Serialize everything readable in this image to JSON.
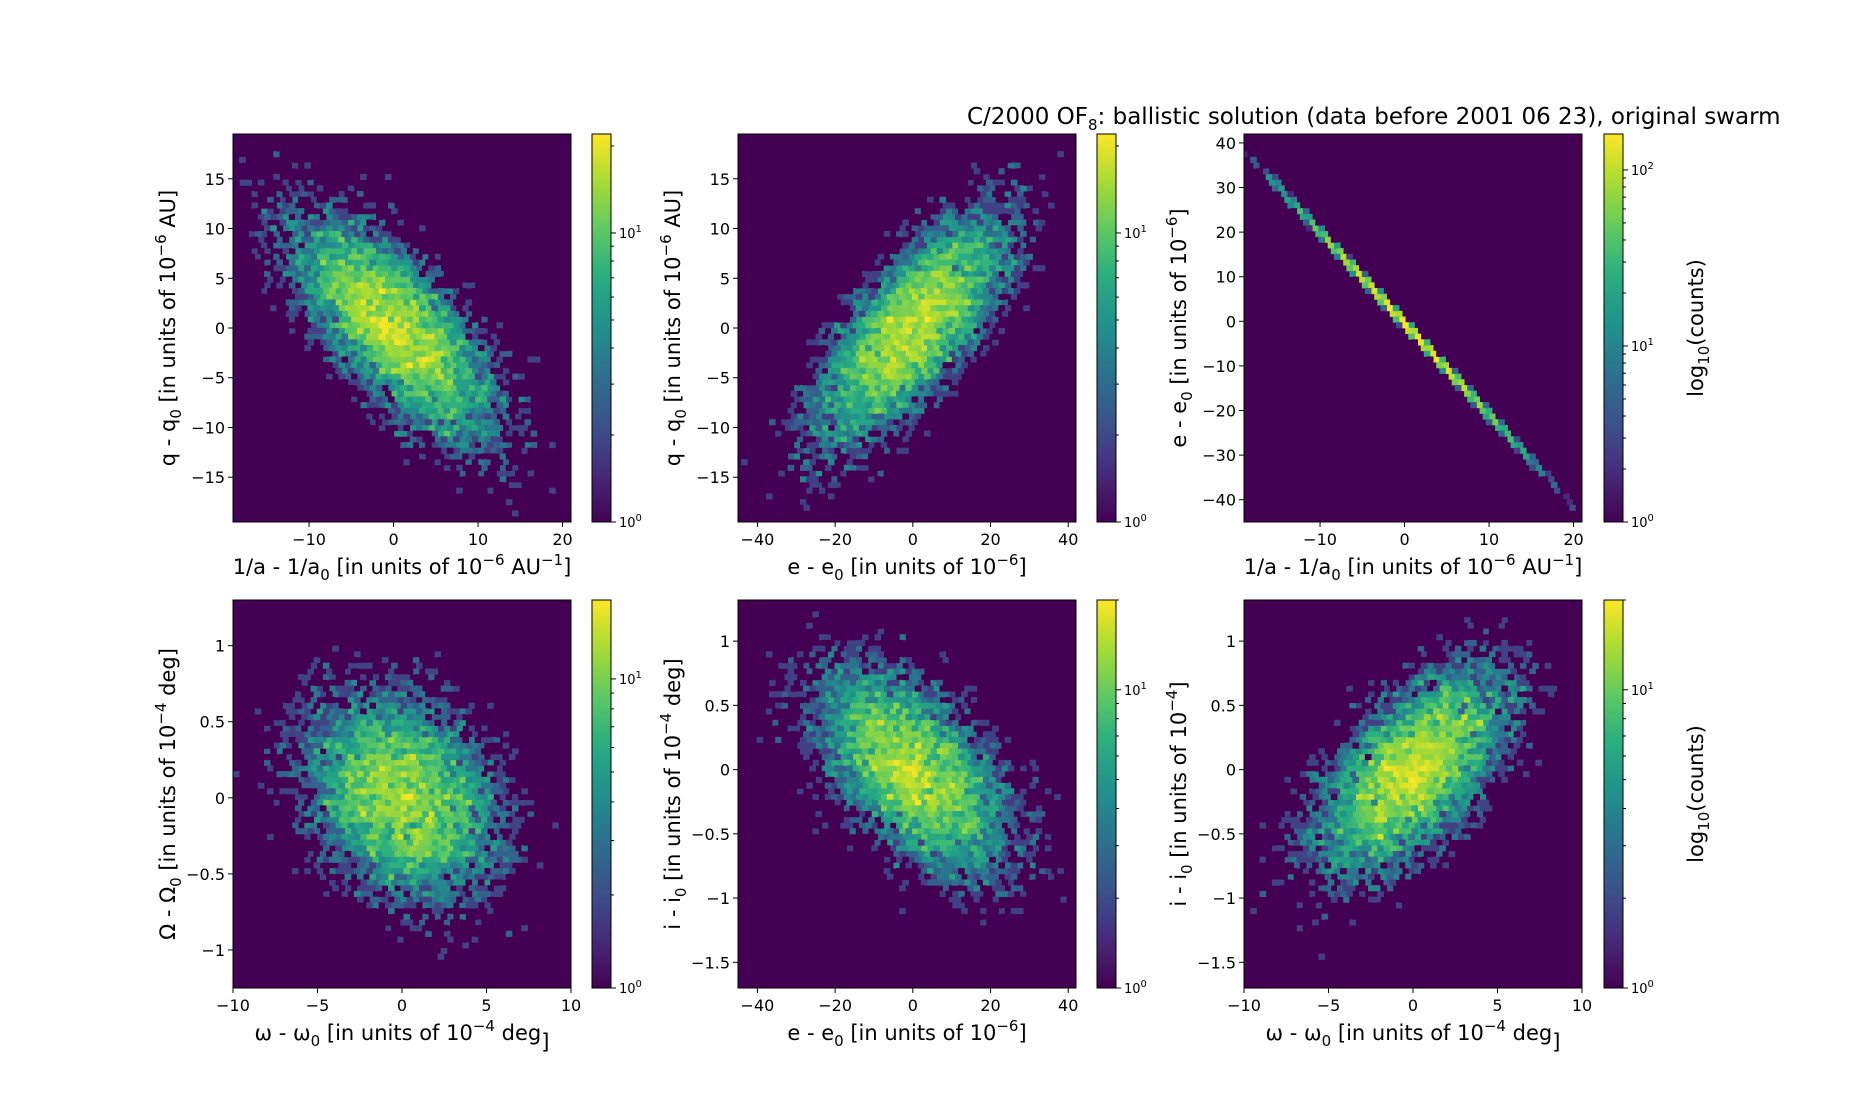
{
  "figure": {
    "title": "C/2000 OF",
    "title_sub": "8",
    "title_rest": ":  ballistic solution (data before 2001 06 23), original swarm"
  },
  "colormap": "viridis",
  "chart_data": [
    {
      "type": "heatmap",
      "id": "q-vs-inva",
      "xlabel": {
        "main": "1/a - 1/a",
        "sub": "0",
        "rest": " [in units of 10",
        "sup": "−6",
        "tail": " AU",
        "sup2": "−1",
        "end": "]"
      },
      "ylabel": {
        "main": "q - q",
        "sub": "0",
        "rest": " [in units of 10",
        "sup": "−6",
        "tail": " AU]"
      },
      "xlim": [
        -19,
        21
      ],
      "ylim": [
        -19.5,
        19.5
      ],
      "xticks": [
        -10,
        0,
        10,
        20
      ],
      "yticks": [
        -15,
        -10,
        -5,
        0,
        5,
        10,
        15
      ],
      "distribution": {
        "sx": 6.5,
        "sy": 6.0,
        "rho": -0.72,
        "n": 9000
      },
      "colorbar": {
        "max": 22,
        "ticks": [
          "10^0",
          "10^1"
        ],
        "label": ""
      }
    },
    {
      "type": "heatmap",
      "id": "q-vs-e",
      "xlabel": {
        "main": "e - e",
        "sub": "0",
        "rest": " [in units of 10",
        "sup": "−6",
        "tail": "",
        "sup2": "",
        "end": "]"
      },
      "ylabel": {
        "main": "q - q",
        "sub": "0",
        "rest": " [in units of 10",
        "sup": "−6",
        "tail": " AU]"
      },
      "xlim": [
        -45,
        42
      ],
      "ylim": [
        -19.5,
        19.5
      ],
      "xticks": [
        -40,
        -20,
        0,
        20,
        40
      ],
      "yticks": [
        -15,
        -10,
        -5,
        0,
        5,
        10,
        15
      ],
      "distribution": {
        "sx": 13.0,
        "sy": 6.0,
        "rho": 0.72,
        "n": 9000
      },
      "colorbar": {
        "max": 22,
        "ticks": [
          "10^0",
          "10^1"
        ],
        "label": ""
      }
    },
    {
      "type": "heatmap",
      "id": "e-vs-inva",
      "xlabel": {
        "main": "1/a - 1/a",
        "sub": "0",
        "rest": " [in units of 10",
        "sup": "−6",
        "tail": " AU",
        "sup2": "−1",
        "end": "]"
      },
      "ylabel": {
        "main": "e - e",
        "sub": "0",
        "rest": " [in units of 10",
        "sup": "−6",
        "tail": "]"
      },
      "xlim": [
        -19,
        21
      ],
      "ylim": [
        -45,
        42
      ],
      "xticks": [
        -10,
        0,
        10,
        20
      ],
      "yticks": [
        -40,
        -30,
        -20,
        -10,
        0,
        10,
        20,
        30,
        40
      ],
      "line": {
        "slope": -2.05,
        "intercept": -0.5
      },
      "colorbar": {
        "max": 160,
        "ticks": [
          "10^0",
          "10^1",
          "10^2"
        ],
        "label": "log10(counts)"
      }
    },
    {
      "type": "heatmap",
      "id": "Omega-vs-omega",
      "xlabel": {
        "main": "ω - ω",
        "sub": "0",
        "rest": " [in units of 10",
        "sup": "−4",
        "tail": " deg",
        "sup2": "",
        "end": "]"
      },
      "ylabel": {
        "main": "Ω - Ω",
        "sub": "0",
        "rest": " [in units of 10",
        "sup": "−4",
        "tail": " deg]"
      },
      "xlim": [
        -10,
        10
      ],
      "ylim": [
        -1.25,
        1.3
      ],
      "xticks": [
        -10,
        -5,
        0,
        5,
        10
      ],
      "yticks": [
        -1.0,
        -0.5,
        0.0,
        0.5,
        1.0
      ],
      "distribution": {
        "sx": 3.0,
        "sy": 0.35,
        "rho": -0.25,
        "n": 9000
      },
      "colorbar": {
        "max": 18,
        "ticks": [
          "10^0",
          "10^1"
        ],
        "label": ""
      }
    },
    {
      "type": "heatmap",
      "id": "i-vs-e",
      "xlabel": {
        "main": "e - e",
        "sub": "0",
        "rest": " [in units of 10",
        "sup": "−6",
        "tail": "",
        "sup2": "",
        "end": "]"
      },
      "ylabel": {
        "main": "i - i",
        "sub": "0",
        "rest": " [in units of 10",
        "sup": "−4",
        "tail": " deg]"
      },
      "xlim": [
        -45,
        42
      ],
      "ylim": [
        -1.7,
        1.32
      ],
      "xticks": [
        -40,
        -20,
        0,
        20,
        40
      ],
      "yticks": [
        -1.5,
        -1.0,
        -0.5,
        0.0,
        0.5,
        1.0
      ],
      "distribution": {
        "sx": 13.0,
        "sy": 0.42,
        "rho": -0.55,
        "n": 9000
      },
      "colorbar": {
        "max": 20,
        "ticks": [
          "10^0",
          "10^1"
        ],
        "label": ""
      }
    },
    {
      "type": "heatmap",
      "id": "i-vs-omega",
      "xlabel": {
        "main": "ω - ω",
        "sub": "0",
        "rest": " [in units of 10",
        "sup": "−4",
        "tail": " deg",
        "sup2": "",
        "end": "]"
      },
      "ylabel": {
        "main": "i - i",
        "sub": "0",
        "rest": " [in units of 10",
        "sup": "−4",
        "tail": "]"
      },
      "xlim": [
        -10,
        10
      ],
      "ylim": [
        -1.7,
        1.32
      ],
      "xticks": [
        -10,
        -5,
        0,
        5,
        10
      ],
      "yticks": [
        -1.5,
        -1.0,
        -0.5,
        0.0,
        0.5,
        1.0
      ],
      "distribution": {
        "sx": 3.0,
        "sy": 0.42,
        "rho": 0.6,
        "n": 9000
      },
      "colorbar": {
        "max": 20,
        "ticks": [
          "10^0",
          "10^1"
        ],
        "label": "log10(counts)"
      }
    }
  ]
}
